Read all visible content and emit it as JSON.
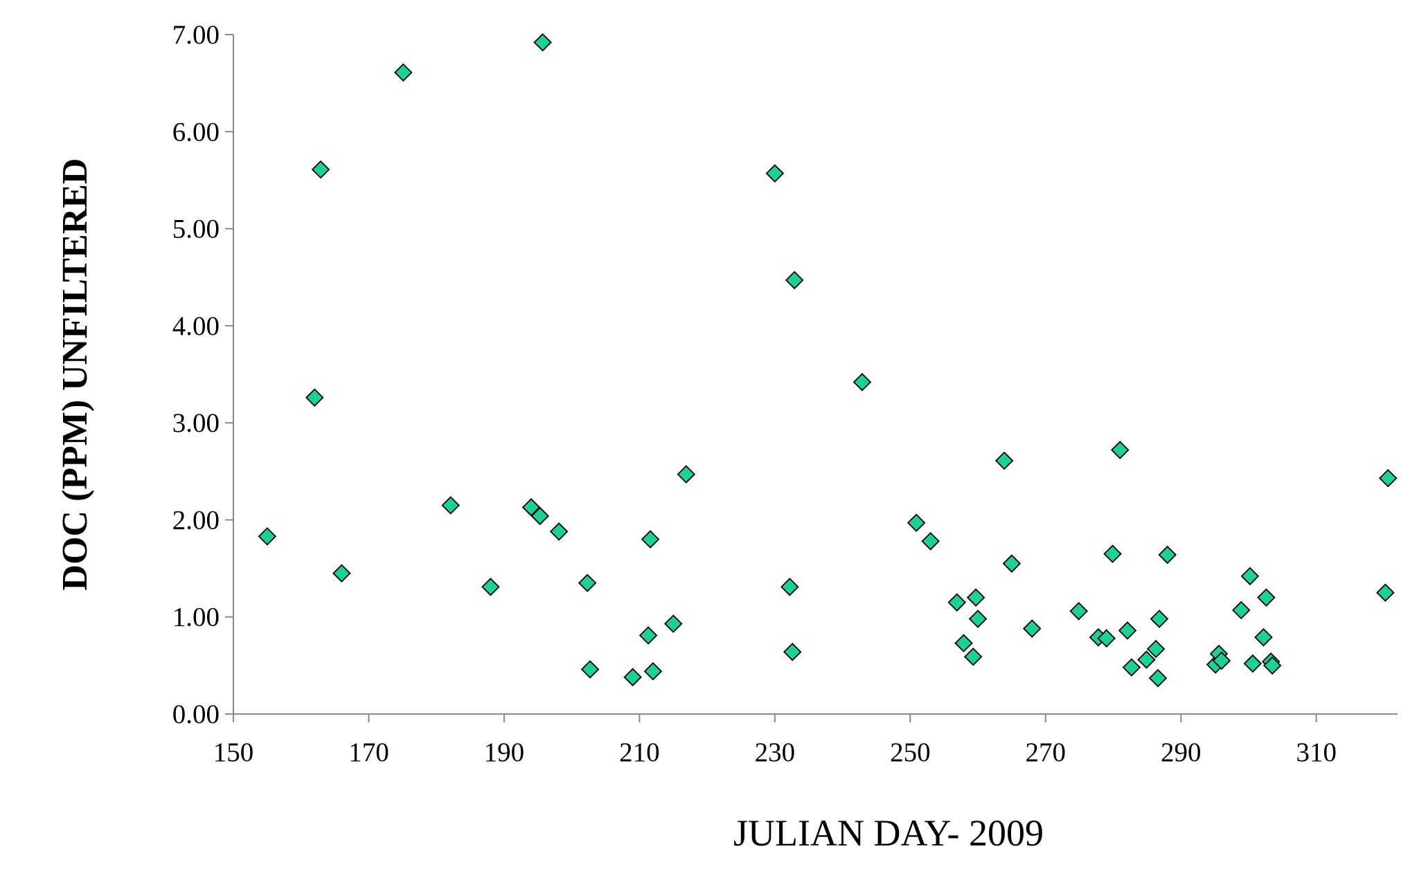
{
  "chart_data": {
    "type": "scatter",
    "x_label": "JULIAN DAY- 2009",
    "y_label": "DOC (PPM) UNFILTERED",
    "color": "#1fcf9a",
    "xlim": [
      150,
      322
    ],
    "ylim": [
      0,
      7
    ],
    "xticks": [
      150,
      170,
      190,
      210,
      230,
      250,
      270,
      290,
      310
    ],
    "yticks": [
      {
        "value": 0,
        "label": "0.00"
      },
      {
        "value": 1,
        "label": "1.00"
      },
      {
        "value": 2,
        "label": "2.00"
      },
      {
        "value": 3,
        "label": "3.00"
      },
      {
        "value": 4,
        "label": "4.00"
      },
      {
        "value": 5,
        "label": "5.00"
      },
      {
        "value": 6,
        "label": "6.00"
      },
      {
        "value": 7,
        "label": "7.00"
      }
    ],
    "x": [
      155.0,
      162.0,
      162.9,
      166.0,
      175.1,
      182.1,
      188.0,
      194.0,
      195.3,
      195.7,
      198.1,
      202.3,
      202.7,
      209.0,
      211.3,
      211.6,
      212.0,
      215.0,
      216.9,
      230.0,
      232.2,
      232.6,
      232.9,
      242.9,
      250.9,
      253.0,
      256.9,
      257.9,
      259.3,
      259.7,
      260.0,
      263.9,
      265.0,
      268.0,
      274.9,
      277.8,
      279.0,
      279.9,
      281.0,
      282.1,
      282.7,
      284.9,
      286.3,
      286.8,
      286.6,
      288.0,
      295.1,
      295.6,
      296.0,
      298.9,
      300.2,
      300.6,
      302.2,
      302.6,
      303.3,
      303.5,
      320.2,
      320.6
    ],
    "values": [
      1.83,
      3.26,
      5.61,
      1.45,
      6.61,
      2.15,
      1.31,
      2.13,
      2.04,
      6.92,
      1.88,
      1.35,
      0.46,
      0.38,
      0.81,
      1.8,
      0.44,
      0.93,
      2.47,
      5.57,
      1.31,
      0.64,
      4.47,
      3.42,
      1.97,
      1.78,
      1.15,
      0.73,
      0.59,
      1.2,
      0.98,
      2.61,
      1.55,
      0.88,
      1.06,
      0.79,
      0.78,
      1.65,
      2.72,
      0.86,
      0.48,
      0.56,
      0.67,
      0.98,
      0.37,
      1.64,
      0.51,
      0.62,
      0.55,
      1.07,
      1.42,
      0.52,
      0.79,
      1.2,
      0.54,
      0.5,
      1.25,
      2.43
    ]
  }
}
